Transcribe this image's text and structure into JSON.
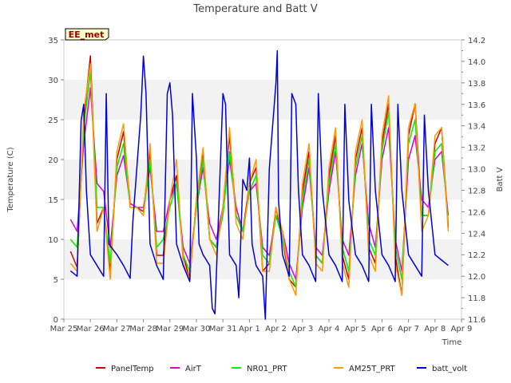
{
  "chart_data": {
    "type": "line",
    "title": "Temperature and Batt V",
    "xlabel": "Time",
    "ylabel": "Temperature (C)",
    "y2label": "Batt V",
    "station_badge": "EE_met",
    "xlim": [
      0,
      15
    ],
    "x_ticks": [
      {
        "label": "Mar 25",
        "day": 0
      },
      {
        "label": "Mar 26",
        "day": 1
      },
      {
        "label": "Mar 27",
        "day": 2
      },
      {
        "label": "Mar 28",
        "day": 3
      },
      {
        "label": "Mar 29",
        "day": 4
      },
      {
        "label": "Mar 30",
        "day": 5
      },
      {
        "label": "Mar 31",
        "day": 6
      },
      {
        "label": "Apr 1",
        "day": 7
      },
      {
        "label": "Apr 2",
        "day": 8
      },
      {
        "label": "Apr 3",
        "day": 9
      },
      {
        "label": "Apr 4",
        "day": 10
      },
      {
        "label": "Apr 5",
        "day": 11
      },
      {
        "label": "Apr 6",
        "day": 12
      },
      {
        "label": "Apr 7",
        "day": 13
      },
      {
        "label": "Apr 8",
        "day": 14
      },
      {
        "label": "Apr 9",
        "day": 15
      }
    ],
    "ylim": [
      0,
      35
    ],
    "y_ticks": [
      "0",
      "5",
      "10",
      "15",
      "20",
      "25",
      "30",
      "35"
    ],
    "y2lim": [
      11.6,
      14.2
    ],
    "y2_ticks": [
      "11.6",
      "11.8",
      "12.0",
      "12.2",
      "12.4",
      "12.6",
      "12.8",
      "13.0",
      "13.2",
      "13.4",
      "13.6",
      "13.8",
      "14.0",
      "14.2"
    ],
    "grid": "horizontal bands",
    "legend_position": "bottom",
    "temperature_series": [
      {
        "name": "PanelTemp",
        "color": "#cc0000",
        "points": [
          [
            0.25,
            8.5
          ],
          [
            0.5,
            6.5
          ],
          [
            0.75,
            25
          ],
          [
            1.0,
            33
          ],
          [
            1.25,
            12
          ],
          [
            1.5,
            14
          ],
          [
            1.75,
            6
          ],
          [
            2.0,
            20
          ],
          [
            2.25,
            23.5
          ],
          [
            2.5,
            14.5
          ],
          [
            2.75,
            14
          ],
          [
            3.0,
            13.5
          ],
          [
            3.25,
            21
          ],
          [
            3.5,
            8
          ],
          [
            3.75,
            8
          ],
          [
            4.0,
            15
          ],
          [
            4.25,
            18
          ],
          [
            4.5,
            8
          ],
          [
            4.75,
            5
          ],
          [
            5.0,
            15
          ],
          [
            5.25,
            21
          ],
          [
            5.5,
            10
          ],
          [
            5.75,
            9
          ],
          [
            6.0,
            14
          ],
          [
            6.25,
            23
          ],
          [
            6.5,
            13
          ],
          [
            6.75,
            11
          ],
          [
            7.0,
            17
          ],
          [
            7.25,
            19
          ],
          [
            7.5,
            6
          ],
          [
            7.75,
            7
          ],
          [
            8.0,
            14
          ],
          [
            8.25,
            10
          ],
          [
            8.5,
            5
          ],
          [
            8.75,
            4
          ],
          [
            9.0,
            16
          ],
          [
            9.25,
            21
          ],
          [
            9.5,
            8
          ],
          [
            9.75,
            7
          ],
          [
            10.0,
            18
          ],
          [
            10.25,
            23
          ],
          [
            10.5,
            8
          ],
          [
            10.75,
            5
          ],
          [
            11.0,
            20
          ],
          [
            11.25,
            24
          ],
          [
            11.5,
            9
          ],
          [
            11.75,
            7
          ],
          [
            12.0,
            22
          ],
          [
            12.25,
            27
          ],
          [
            12.5,
            8
          ],
          [
            12.75,
            3
          ],
          [
            13.0,
            23
          ],
          [
            13.25,
            27
          ],
          [
            13.5,
            13
          ],
          [
            13.75,
            13
          ],
          [
            14.0,
            22
          ],
          [
            14.25,
            24
          ],
          [
            14.5,
            11.5
          ]
        ]
      },
      {
        "name": "AirT",
        "color": "#dd00dd",
        "points": [
          [
            0.25,
            12.5
          ],
          [
            0.5,
            11
          ],
          [
            0.75,
            22
          ],
          [
            1.0,
            29
          ],
          [
            1.25,
            17
          ],
          [
            1.5,
            16
          ],
          [
            1.75,
            9
          ],
          [
            2.0,
            18
          ],
          [
            2.25,
            20.5
          ],
          [
            2.5,
            14.5
          ],
          [
            2.75,
            14
          ],
          [
            3.0,
            14
          ],
          [
            3.25,
            19
          ],
          [
            3.5,
            11
          ],
          [
            3.75,
            11
          ],
          [
            4.0,
            15
          ],
          [
            4.25,
            17
          ],
          [
            4.5,
            9
          ],
          [
            4.75,
            7
          ],
          [
            5.0,
            14
          ],
          [
            5.25,
            19
          ],
          [
            5.5,
            12
          ],
          [
            5.75,
            10
          ],
          [
            6.0,
            14
          ],
          [
            6.25,
            20
          ],
          [
            6.5,
            14
          ],
          [
            6.75,
            11
          ],
          [
            7.0,
            16
          ],
          [
            7.25,
            17
          ],
          [
            7.5,
            9
          ],
          [
            7.75,
            8
          ],
          [
            8.0,
            13
          ],
          [
            8.25,
            11
          ],
          [
            8.5,
            7
          ],
          [
            8.75,
            5
          ],
          [
            9.0,
            14
          ],
          [
            9.25,
            19
          ],
          [
            9.5,
            9
          ],
          [
            9.75,
            8
          ],
          [
            10.0,
            16
          ],
          [
            10.25,
            21
          ],
          [
            10.5,
            10
          ],
          [
            10.75,
            8
          ],
          [
            11.0,
            18
          ],
          [
            11.25,
            22
          ],
          [
            11.5,
            12
          ],
          [
            11.75,
            9
          ],
          [
            12.0,
            20
          ],
          [
            12.25,
            24
          ],
          [
            12.5,
            10
          ],
          [
            12.75,
            6
          ],
          [
            13.0,
            20
          ],
          [
            13.25,
            23
          ],
          [
            13.5,
            15
          ],
          [
            13.75,
            14
          ],
          [
            14.0,
            20
          ],
          [
            14.25,
            21
          ],
          [
            14.5,
            13
          ]
        ]
      },
      {
        "name": "NR01_PRT",
        "color": "#00ee00",
        "points": [
          [
            0.25,
            10
          ],
          [
            0.5,
            9
          ],
          [
            0.75,
            24
          ],
          [
            1.0,
            31
          ],
          [
            1.25,
            14
          ],
          [
            1.5,
            14
          ],
          [
            1.75,
            7
          ],
          [
            2.0,
            19
          ],
          [
            2.25,
            22
          ],
          [
            2.5,
            14
          ],
          [
            2.75,
            14
          ],
          [
            3.0,
            13
          ],
          [
            3.25,
            20
          ],
          [
            3.5,
            9
          ],
          [
            3.75,
            10
          ],
          [
            4.0,
            14
          ],
          [
            4.25,
            17
          ],
          [
            4.5,
            8
          ],
          [
            4.75,
            6
          ],
          [
            5.0,
            14
          ],
          [
            5.25,
            20
          ],
          [
            5.5,
            10
          ],
          [
            5.75,
            9
          ],
          [
            6.0,
            13
          ],
          [
            6.25,
            21
          ],
          [
            6.5,
            13
          ],
          [
            6.75,
            11
          ],
          [
            7.0,
            16
          ],
          [
            7.25,
            18
          ],
          [
            7.5,
            8
          ],
          [
            7.75,
            7
          ],
          [
            8.0,
            13
          ],
          [
            8.25,
            10
          ],
          [
            8.5,
            6
          ],
          [
            8.75,
            4
          ],
          [
            9.0,
            15
          ],
          [
            9.25,
            20
          ],
          [
            9.5,
            8
          ],
          [
            9.75,
            7
          ],
          [
            10.0,
            17
          ],
          [
            10.25,
            22
          ],
          [
            10.5,
            9
          ],
          [
            10.75,
            6
          ],
          [
            11.0,
            19
          ],
          [
            11.25,
            23
          ],
          [
            11.5,
            10
          ],
          [
            11.75,
            8
          ],
          [
            12.0,
            21
          ],
          [
            12.25,
            26
          ],
          [
            12.5,
            9
          ],
          [
            12.75,
            5
          ],
          [
            13.0,
            22
          ],
          [
            13.25,
            25
          ],
          [
            13.5,
            13
          ],
          [
            13.75,
            13
          ],
          [
            14.0,
            21
          ],
          [
            14.25,
            22
          ],
          [
            14.5,
            12
          ]
        ]
      },
      {
        "name": "AM25T_PRT",
        "color": "#ff9900",
        "points": [
          [
            0.25,
            7
          ],
          [
            0.5,
            6
          ],
          [
            0.75,
            26
          ],
          [
            1.0,
            32
          ],
          [
            1.25,
            11
          ],
          [
            1.5,
            14
          ],
          [
            1.75,
            5
          ],
          [
            2.0,
            21
          ],
          [
            2.25,
            24.5
          ],
          [
            2.5,
            14
          ],
          [
            2.75,
            14
          ],
          [
            3.0,
            13
          ],
          [
            3.25,
            22
          ],
          [
            3.5,
            7
          ],
          [
            3.75,
            7
          ],
          [
            4.0,
            15
          ],
          [
            4.25,
            20
          ],
          [
            4.5,
            7
          ],
          [
            4.75,
            5
          ],
          [
            5.0,
            15
          ],
          [
            5.25,
            21.5
          ],
          [
            5.5,
            10
          ],
          [
            5.75,
            8
          ],
          [
            6.0,
            14
          ],
          [
            6.25,
            24
          ],
          [
            6.5,
            12
          ],
          [
            6.75,
            10
          ],
          [
            7.0,
            17
          ],
          [
            7.25,
            20
          ],
          [
            7.5,
            6
          ],
          [
            7.75,
            6
          ],
          [
            8.0,
            14
          ],
          [
            8.25,
            11
          ],
          [
            8.5,
            5
          ],
          [
            8.75,
            3
          ],
          [
            9.0,
            17
          ],
          [
            9.25,
            22
          ],
          [
            9.5,
            7
          ],
          [
            9.75,
            6
          ],
          [
            10.0,
            19
          ],
          [
            10.25,
            24
          ],
          [
            10.5,
            7
          ],
          [
            10.75,
            4
          ],
          [
            11.0,
            21
          ],
          [
            11.25,
            25
          ],
          [
            11.5,
            8
          ],
          [
            11.75,
            6
          ],
          [
            12.0,
            23
          ],
          [
            12.25,
            28
          ],
          [
            12.5,
            7
          ],
          [
            12.75,
            3
          ],
          [
            13.0,
            24
          ],
          [
            13.25,
            27
          ],
          [
            13.5,
            11
          ],
          [
            13.75,
            13
          ],
          [
            14.0,
            23
          ],
          [
            14.25,
            24
          ],
          [
            14.5,
            11
          ]
        ]
      }
    ],
    "batt_volt": {
      "name": "batt_volt",
      "color": "#0000dd",
      "axis": "right",
      "points": [
        [
          0.25,
          12.05
        ],
        [
          0.5,
          12.0
        ],
        [
          0.65,
          13.45
        ],
        [
          0.75,
          13.6
        ],
        [
          0.85,
          12.8
        ],
        [
          1.0,
          12.2
        ],
        [
          1.25,
          12.1
        ],
        [
          1.5,
          12.0
        ],
        [
          1.6,
          13.7
        ],
        [
          1.7,
          12.3
        ],
        [
          2.0,
          12.2
        ],
        [
          2.25,
          12.1
        ],
        [
          2.5,
          11.98
        ],
        [
          2.6,
          12.5
        ],
        [
          2.9,
          13.5
        ],
        [
          3.0,
          14.05
        ],
        [
          3.1,
          13.7
        ],
        [
          3.25,
          12.3
        ],
        [
          3.5,
          12.1
        ],
        [
          3.75,
          11.97
        ],
        [
          3.9,
          13.7
        ],
        [
          4.0,
          13.8
        ],
        [
          4.1,
          13.5
        ],
        [
          4.25,
          12.3
        ],
        [
          4.5,
          12.1
        ],
        [
          4.75,
          11.95
        ],
        [
          4.85,
          13.7
        ],
        [
          5.0,
          13.1
        ],
        [
          5.1,
          12.3
        ],
        [
          5.25,
          12.2
        ],
        [
          5.5,
          12.1
        ],
        [
          5.6,
          11.7
        ],
        [
          5.7,
          11.65
        ],
        [
          5.75,
          12.0
        ],
        [
          6.0,
          13.7
        ],
        [
          6.1,
          13.6
        ],
        [
          6.25,
          12.2
        ],
        [
          6.5,
          12.1
        ],
        [
          6.6,
          11.8
        ],
        [
          6.75,
          12.9
        ],
        [
          6.9,
          12.8
        ],
        [
          7.0,
          13.1
        ],
        [
          7.1,
          12.3
        ],
        [
          7.25,
          12.1
        ],
        [
          7.5,
          12.0
        ],
        [
          7.6,
          11.6
        ],
        [
          7.75,
          13.0
        ],
        [
          8.0,
          13.8
        ],
        [
          8.05,
          14.1
        ],
        [
          8.1,
          12.7
        ],
        [
          8.25,
          12.2
        ],
        [
          8.5,
          12.0
        ],
        [
          8.6,
          13.7
        ],
        [
          8.75,
          13.6
        ],
        [
          8.85,
          12.8
        ],
        [
          9.0,
          12.2
        ],
        [
          9.25,
          12.1
        ],
        [
          9.5,
          11.95
        ],
        [
          9.6,
          13.7
        ],
        [
          9.75,
          12.8
        ],
        [
          10.0,
          12.2
        ],
        [
          10.25,
          12.1
        ],
        [
          10.5,
          11.95
        ],
        [
          10.6,
          13.6
        ],
        [
          10.75,
          12.7
        ],
        [
          11.0,
          12.2
        ],
        [
          11.25,
          12.1
        ],
        [
          11.5,
          11.95
        ],
        [
          11.6,
          13.6
        ],
        [
          11.75,
          12.8
        ],
        [
          12.0,
          12.2
        ],
        [
          12.25,
          12.1
        ],
        [
          12.5,
          11.95
        ],
        [
          12.6,
          13.6
        ],
        [
          12.75,
          12.8
        ],
        [
          13.0,
          12.2
        ],
        [
          13.25,
          12.1
        ],
        [
          13.5,
          12.0
        ],
        [
          13.6,
          13.5
        ],
        [
          13.75,
          12.8
        ],
        [
          14.0,
          12.2
        ],
        [
          14.25,
          12.15
        ],
        [
          14.5,
          12.1
        ]
      ]
    }
  }
}
